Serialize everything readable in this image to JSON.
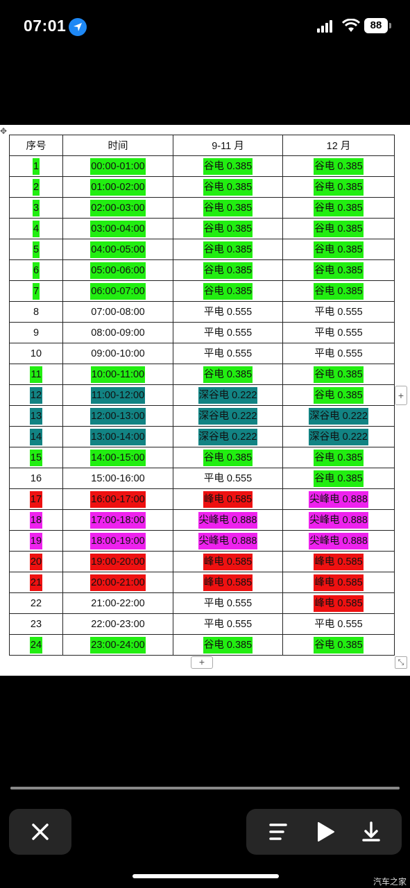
{
  "status_bar": {
    "time": "07:01",
    "battery": "88"
  },
  "table": {
    "headers": [
      "序号",
      "时间",
      "9-11 月",
      "12 月"
    ],
    "rows": [
      {
        "n": "1",
        "n_hl": "g",
        "time": "00:00-01:00",
        "time_hl": "g",
        "a": "谷电 0.385",
        "a_hl": "g",
        "b": "谷电 0.385",
        "b_hl": "g"
      },
      {
        "n": "2",
        "n_hl": "g",
        "time": "01:00-02:00",
        "time_hl": "g",
        "a": "谷电 0.385",
        "a_hl": "g",
        "b": "谷电 0.385",
        "b_hl": "g"
      },
      {
        "n": "3",
        "n_hl": "g",
        "time": "02:00-03:00",
        "time_hl": "g",
        "a": "谷电 0.385",
        "a_hl": "g",
        "b": "谷电 0.385",
        "b_hl": "g"
      },
      {
        "n": "4",
        "n_hl": "g",
        "time": "03:00-04:00",
        "time_hl": "g",
        "a": "谷电 0.385",
        "a_hl": "g",
        "b": "谷电 0.385",
        "b_hl": "g"
      },
      {
        "n": "5",
        "n_hl": "g",
        "time": "04:00-05:00",
        "time_hl": "g",
        "a": "谷电 0.385",
        "a_hl": "g",
        "b": "谷电 0.385",
        "b_hl": "g"
      },
      {
        "n": "6",
        "n_hl": "g",
        "time": "05:00-06:00",
        "time_hl": "g",
        "a": "谷电 0.385",
        "a_hl": "g",
        "b": "谷电 0.385",
        "b_hl": "g"
      },
      {
        "n": "7",
        "n_hl": "g",
        "time": "06:00-07:00",
        "time_hl": "g",
        "a": "谷电 0.385",
        "a_hl": "g",
        "b": "谷电 0.385",
        "b_hl": "g"
      },
      {
        "n": "8",
        "n_hl": "",
        "time": "07:00-08:00",
        "time_hl": "",
        "a": "平电 0.555",
        "a_hl": "",
        "b": "平电 0.555",
        "b_hl": ""
      },
      {
        "n": "9",
        "n_hl": "",
        "time": "08:00-09:00",
        "time_hl": "",
        "a": "平电 0.555",
        "a_hl": "",
        "b": "平电 0.555",
        "b_hl": ""
      },
      {
        "n": "10",
        "n_hl": "",
        "time": "09:00-10:00",
        "time_hl": "",
        "a": "平电 0.555",
        "a_hl": "",
        "b": "平电 0.555",
        "b_hl": ""
      },
      {
        "n": "11",
        "n_hl": "g",
        "time": "10:00-11:00",
        "time_hl": "g",
        "a": "谷电 0.385",
        "a_hl": "g",
        "b": "谷电 0.385",
        "b_hl": "g"
      },
      {
        "n": "12",
        "n_hl": "t",
        "time": "11:00-12:00",
        "time_hl": "t",
        "a": "深谷电 0.222",
        "a_hl": "t",
        "b": "谷电 0.385",
        "b_hl": "g"
      },
      {
        "n": "13",
        "n_hl": "t",
        "time": "12:00-13:00",
        "time_hl": "t",
        "a": "深谷电 0.222",
        "a_hl": "t",
        "b": "深谷电 0.222",
        "b_hl": "t"
      },
      {
        "n": "14",
        "n_hl": "t",
        "time": "13:00-14:00",
        "time_hl": "t",
        "a": "深谷电 0.222",
        "a_hl": "t",
        "b": "深谷电 0.222",
        "b_hl": "t"
      },
      {
        "n": "15",
        "n_hl": "g",
        "time": "14:00-15:00",
        "time_hl": "g",
        "a": "谷电 0.385",
        "a_hl": "g",
        "b": "谷电 0.385",
        "b_hl": "g"
      },
      {
        "n": "16",
        "n_hl": "",
        "time": "15:00-16:00",
        "time_hl": "",
        "a": "平电 0.555",
        "a_hl": "",
        "b": "谷电 0.385",
        "b_hl": "g"
      },
      {
        "n": "17",
        "n_hl": "r",
        "time": "16:00-17:00",
        "time_hl": "r",
        "a": "峰电 0.585",
        "a_hl": "r",
        "b": "尖峰电 0.888",
        "b_hl": "m"
      },
      {
        "n": "18",
        "n_hl": "m",
        "time": "17:00-18:00",
        "time_hl": "m",
        "a": "尖峰电 0.888",
        "a_hl": "m",
        "b": "尖峰电 0.888",
        "b_hl": "m"
      },
      {
        "n": "19",
        "n_hl": "m",
        "time": "18:00-19:00",
        "time_hl": "m",
        "a": "尖峰电 0.888",
        "a_hl": "m",
        "b": "尖峰电 0.888",
        "b_hl": "m"
      },
      {
        "n": "20",
        "n_hl": "r",
        "time": "19:00-20:00",
        "time_hl": "r",
        "a": "峰电 0.585",
        "a_hl": "r",
        "b": "峰电 0.585",
        "b_hl": "r"
      },
      {
        "n": "21",
        "n_hl": "r",
        "time": "20:00-21:00",
        "time_hl": "r",
        "a": "峰电 0.585",
        "a_hl": "r",
        "b": "峰电 0.585",
        "b_hl": "r"
      },
      {
        "n": "22",
        "n_hl": "",
        "time": "21:00-22:00",
        "time_hl": "",
        "a": "平电 0.555",
        "a_hl": "",
        "b": "峰电 0.585",
        "b_hl": "r"
      },
      {
        "n": "23",
        "n_hl": "",
        "time": "22:00-23:00",
        "time_hl": "",
        "a": "平电 0.555",
        "a_hl": "",
        "b": "平电 0.555",
        "b_hl": ""
      },
      {
        "n": "24",
        "n_hl": "g",
        "time": "23:00-24:00",
        "time_hl": "g",
        "a": "谷电 0.385",
        "a_hl": "g",
        "b": "谷电 0.385",
        "b_hl": "g"
      }
    ]
  },
  "highlight_colors": {
    "valley": "#22ee11",
    "deep_valley": "#128383",
    "peak": "#ee1111",
    "sharp_peak": "#ee22ee"
  },
  "editor_controls": {
    "add_row": "+",
    "add_column": "+"
  },
  "player": {
    "progress": 1.0,
    "buttons": [
      "close-icon",
      "menu-icon",
      "play-icon",
      "download-icon"
    ]
  },
  "watermark": "汽车之家"
}
